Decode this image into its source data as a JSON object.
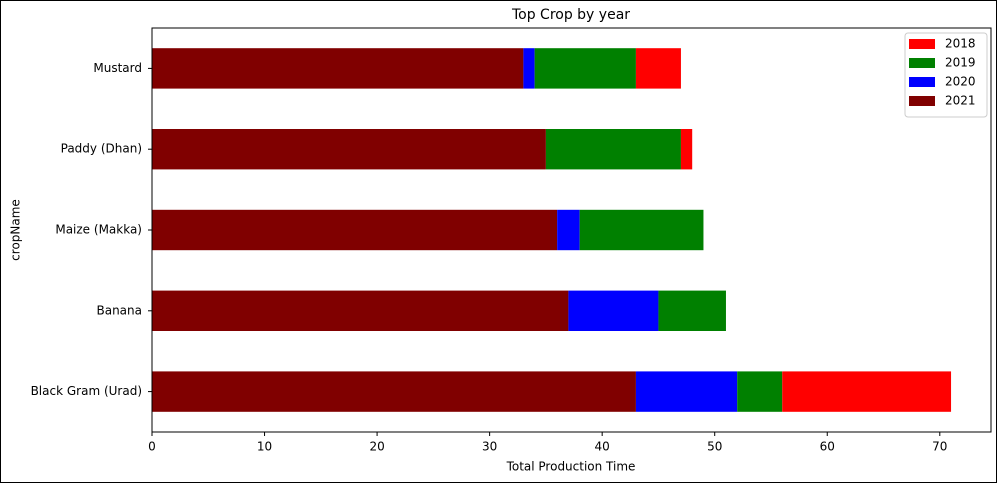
{
  "chart_data": {
    "type": "stacked-barh",
    "title": "Top Crop by year",
    "x_label": "Total Production Time",
    "y_label": "cropName",
    "categories": [
      "Mustard",
      "Paddy (Dhan)",
      "Maize (Makka)",
      "Banana",
      "Black Gram (Urad)"
    ],
    "series": [
      {
        "name": "2018",
        "color": "#ff0000",
        "values": [
          4,
          1,
          0,
          0,
          15
        ]
      },
      {
        "name": "2019",
        "color": "#008000",
        "values": [
          9,
          12,
          11,
          6,
          4
        ]
      },
      {
        "name": "2020",
        "color": "#0000ff",
        "values": [
          1,
          0,
          2,
          8,
          9
        ]
      },
      {
        "name": "2021",
        "color": "#800000",
        "values": [
          33,
          35,
          36,
          37,
          43
        ]
      }
    ],
    "xlim": [
      0,
      74.55
    ],
    "xticks": [
      0,
      10,
      20,
      30,
      40,
      50,
      60,
      70
    ],
    "legend": "upper right"
  }
}
